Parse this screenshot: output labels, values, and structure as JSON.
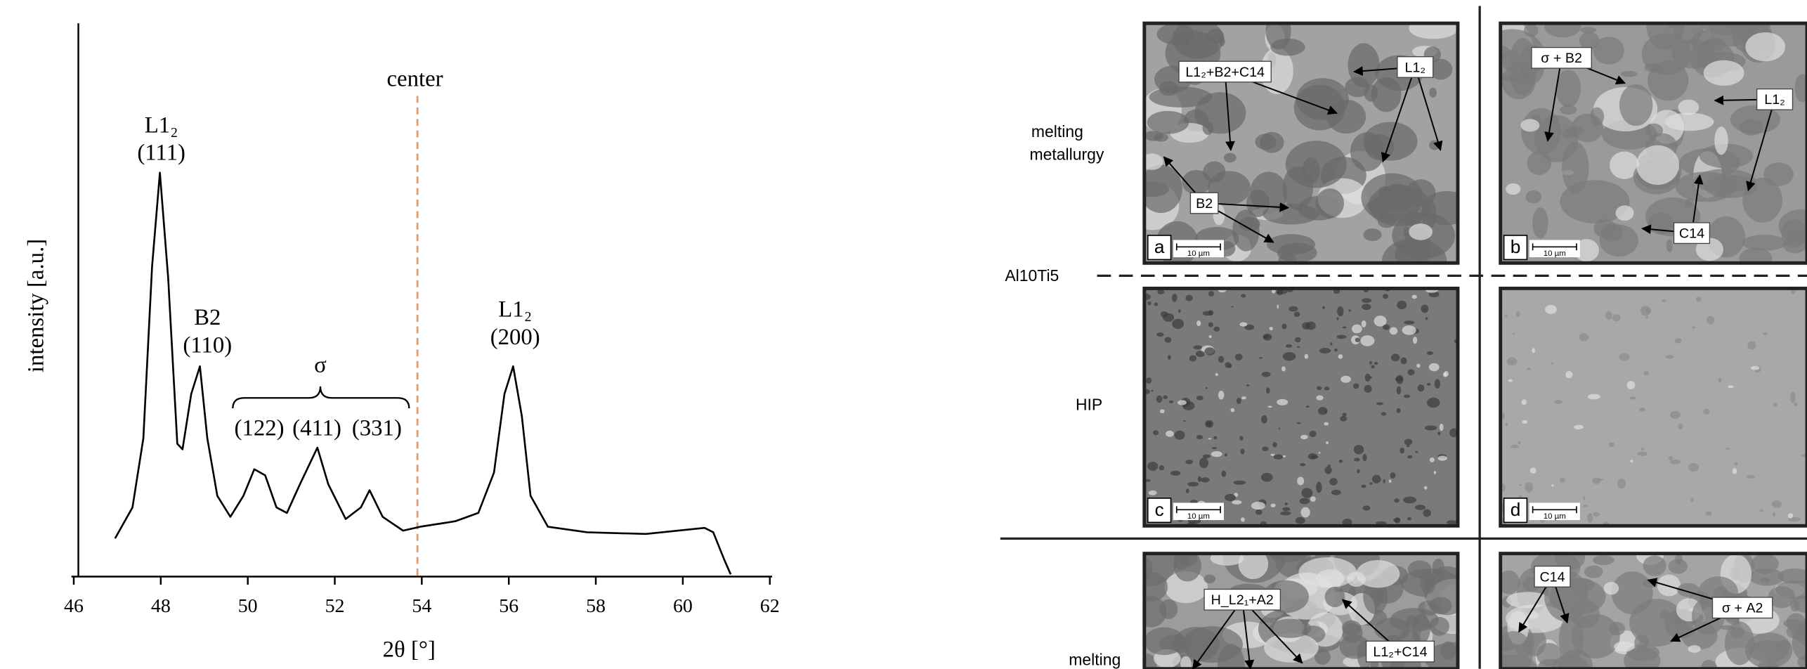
{
  "chart_data": {
    "type": "line",
    "x_label": "2θ [°]",
    "y_label": "intensity [a.u.]",
    "x": [
      46.95,
      47.35,
      47.6,
      47.8,
      47.98,
      48.17,
      48.38,
      48.5,
      48.7,
      48.9,
      49.07,
      49.3,
      49.6,
      49.9,
      50.15,
      50.4,
      50.66,
      50.9,
      51.2,
      51.6,
      51.85,
      52.25,
      52.6,
      52.8,
      53.1,
      53.57,
      53.96,
      54.77,
      55.3,
      55.66,
      55.9,
      56.1,
      56.3,
      56.5,
      56.9,
      57.8,
      59.15,
      60.5,
      60.7,
      60.95,
      61.1
    ],
    "series": [
      {
        "color": "#000000",
        "values": [
          6.9,
          12.5,
          25,
          56,
          73,
          54,
          24,
          23,
          33,
          38,
          25,
          14.6,
          10.8,
          14.6,
          19.4,
          18.3,
          12.5,
          11.5,
          16.7,
          23.3,
          16.7,
          10.4,
          12.5,
          15.6,
          10.8,
          8.3,
          9.0,
          10,
          11.5,
          18.8,
          33,
          38,
          29,
          14.6,
          9,
          8,
          7.7,
          8.8,
          8,
          3.1,
          0.4
        ]
      }
    ],
    "xlim": [
      46,
      62
    ],
    "xticks": [
      46,
      48,
      50,
      52,
      54,
      56,
      58,
      60,
      62
    ],
    "ylim": [
      0,
      100
    ],
    "center_line": {
      "label": "center",
      "x": 53.9,
      "color": "#e0a070"
    },
    "peaks": [
      {
        "phase": "L1₂",
        "plane": "(111)"
      },
      {
        "phase": "B2",
        "plane": "(110)"
      },
      {
        "phase": "L1₂",
        "plane": "(200)"
      }
    ],
    "sigma": {
      "label": "σ",
      "planes": [
        "(122)",
        "(411)",
        "(331)"
      ]
    }
  },
  "micrographs": {
    "row_labels": [
      "melting metallurgy",
      "HIP",
      "melting"
    ],
    "alloy": "Al10Ti5",
    "panels": [
      {
        "letter": "a",
        "scale": "10 µm",
        "annotations": [
          "L1₂+B2+C14",
          "L1₂",
          "B2"
        ]
      },
      {
        "letter": "b",
        "scale": "10 µm",
        "annotations": [
          "σ + B2",
          "L1₂",
          "C14"
        ]
      },
      {
        "letter": "c",
        "scale": "10 µm",
        "annotations": []
      },
      {
        "letter": "d",
        "scale": "10 µm",
        "annotations": []
      },
      {
        "annotations": [
          "H_L2₁+A2",
          "L1₂+C14"
        ]
      },
      {
        "annotations": [
          "C14",
          "σ + A2"
        ]
      }
    ]
  }
}
